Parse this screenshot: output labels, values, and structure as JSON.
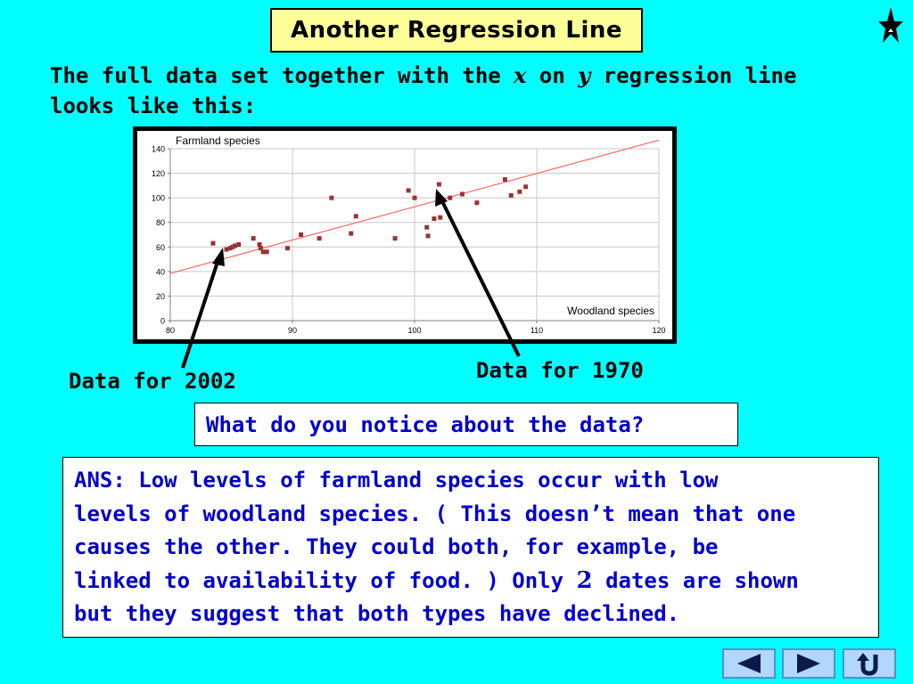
{
  "title": "Another Regression Line",
  "intro": {
    "part1": "The full data set together with the ",
    "var_x": "x",
    "part2": " on ",
    "var_y": "y",
    "part3": " regression line looks like this:"
  },
  "chart_data": {
    "type": "scatter",
    "title": "",
    "ylabel": "Farmland species",
    "xlabel": "Woodland species",
    "xlim": [
      80,
      120
    ],
    "ylim": [
      0,
      140
    ],
    "xticks": [
      80,
      90,
      100,
      110,
      120
    ],
    "yticks": [
      0,
      20,
      40,
      60,
      80,
      100,
      120,
      140
    ],
    "grid": true,
    "point_color": "#993333",
    "line_color": "#ff6666",
    "regression_line": {
      "x": [
        80,
        120
      ],
      "y": [
        38.5,
        147
      ]
    },
    "points": [
      {
        "x": 83.5,
        "y": 63
      },
      {
        "x": 84.6,
        "y": 58
      },
      {
        "x": 84.9,
        "y": 59
      },
      {
        "x": 85.1,
        "y": 60
      },
      {
        "x": 85.3,
        "y": 61
      },
      {
        "x": 85.6,
        "y": 62
      },
      {
        "x": 86.8,
        "y": 67
      },
      {
        "x": 87.3,
        "y": 62
      },
      {
        "x": 87.4,
        "y": 59
      },
      {
        "x": 87.6,
        "y": 56
      },
      {
        "x": 87.9,
        "y": 56
      },
      {
        "x": 89.6,
        "y": 59
      },
      {
        "x": 90.7,
        "y": 70
      },
      {
        "x": 92.2,
        "y": 67
      },
      {
        "x": 93.2,
        "y": 100
      },
      {
        "x": 94.8,
        "y": 71
      },
      {
        "x": 95.2,
        "y": 85
      },
      {
        "x": 98.4,
        "y": 67
      },
      {
        "x": 99.5,
        "y": 106
      },
      {
        "x": 100.0,
        "y": 100
      },
      {
        "x": 101.0,
        "y": 76
      },
      {
        "x": 101.1,
        "y": 69
      },
      {
        "x": 101.6,
        "y": 83
      },
      {
        "x": 102.0,
        "y": 111
      },
      {
        "x": 102.1,
        "y": 84
      },
      {
        "x": 102.9,
        "y": 100
      },
      {
        "x": 103.9,
        "y": 103
      },
      {
        "x": 105.1,
        "y": 96
      },
      {
        "x": 107.4,
        "y": 115
      },
      {
        "x": 107.9,
        "y": 102
      },
      {
        "x": 108.6,
        "y": 105
      },
      {
        "x": 109.1,
        "y": 109
      }
    ]
  },
  "labels": {
    "data_2002": "Data for 2002",
    "data_1970": "Data for 1970"
  },
  "question": "What do you notice about the data?",
  "answer": {
    "lines": [
      "ANS:  Low levels of farmland species occur with low",
      "levels of woodland species.  ( This doesn’t mean that one",
      "causes the other.  They could both, for example, be",
      "linked to availability of food. )   Only "
    ],
    "number": "2",
    "line4_end": " dates are shown",
    "line5": "but they suggest that both types have declined."
  },
  "icons": {
    "star": "star-icon",
    "prev": "left-arrow-icon",
    "next": "right-arrow-icon",
    "back": "u-turn-icon"
  }
}
